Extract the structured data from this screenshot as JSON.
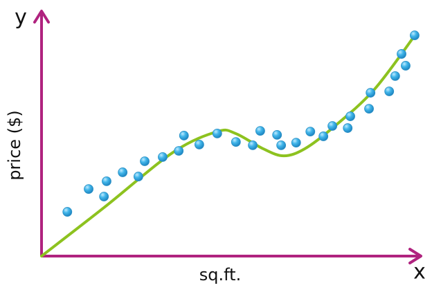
{
  "chart_data": {
    "type": "scatter",
    "x_label": "sq.ft.",
    "y_label": "price ($)",
    "x_axis_name": "x",
    "y_axis_name": "y",
    "xlim": [
      0,
      100
    ],
    "ylim": [
      0,
      100
    ],
    "points": {
      "color": "#41b6ea",
      "x": [
        6.9,
        12.6,
        16.7,
        17.4,
        21.7,
        25.9,
        27.6,
        32.4,
        36.7,
        38.1,
        42.2,
        47.0,
        52.0,
        56.5,
        58.5,
        63.0,
        64.1,
        68.1,
        71.9,
        75.4,
        77.8,
        81.9,
        82.6,
        87.6,
        88.0,
        93.0,
        94.6,
        96.3,
        97.4,
        99.8
      ],
      "y": [
        18.8,
        28.5,
        25.3,
        31.8,
        35.6,
        33.8,
        40.3,
        42.1,
        44.7,
        51.2,
        47.4,
        52.1,
        48.5,
        47.1,
        53.2,
        51.5,
        47.1,
        48.2,
        52.9,
        50.9,
        55.3,
        54.4,
        59.4,
        62.6,
        69.4,
        70.0,
        76.5,
        85.9,
        80.9,
        93.8
      ]
    },
    "fit": {
      "color": "#8dc21f",
      "x": [
        0,
        16.7,
        35.2,
        47.0,
        51.9,
        59.3,
        64.8,
        70.4,
        77.8,
        88.9,
        100
      ],
      "y": [
        0,
        20.6,
        44.1,
        52.9,
        52.1,
        45.6,
        42.6,
        45.6,
        54.4,
        70.6,
        94.1
      ]
    },
    "axis_color": "#b0237f"
  }
}
